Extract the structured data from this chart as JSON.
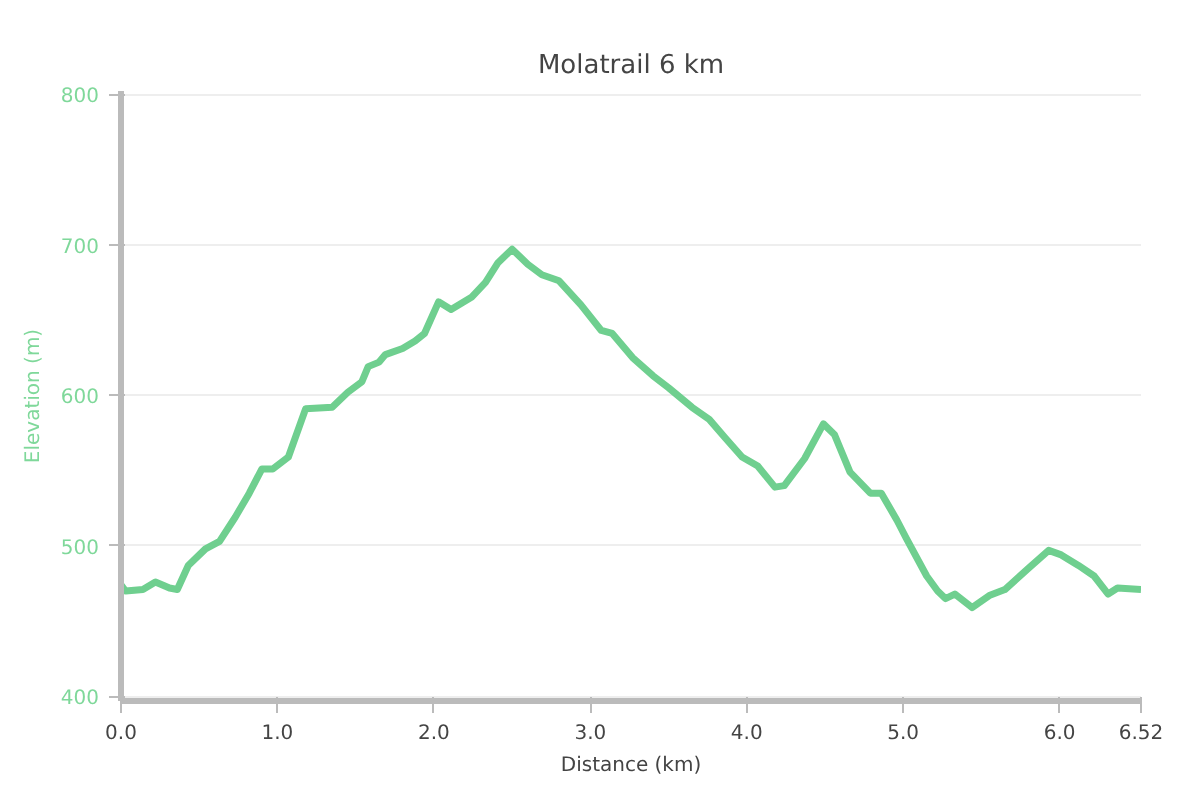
{
  "chart_data": {
    "type": "line",
    "title": "Molatrail 6 km",
    "xlabel": "Distance (km)",
    "ylabel": "Elevation (m)",
    "x": [
      0,
      0.03,
      0.14,
      0.22,
      0.31,
      0.36,
      0.43,
      0.54,
      0.63,
      0.73,
      0.82,
      0.9,
      0.97,
      1.07,
      1.18,
      1.35,
      1.45,
      1.54,
      1.58,
      1.65,
      1.69,
      1.8,
      1.88,
      1.94,
      2.03,
      2.11,
      2.24,
      2.33,
      2.41,
      2.5,
      2.6,
      2.69,
      2.8,
      2.94,
      3.07,
      3.14,
      3.27,
      3.4,
      3.5,
      3.65,
      3.76,
      3.86,
      3.97,
      4.07,
      4.18,
      4.24,
      4.37,
      4.49,
      4.56,
      4.66,
      4.79,
      4.86,
      4.96,
      5.02,
      5.15,
      5.22,
      5.27,
      5.33,
      5.44,
      5.55,
      5.65,
      5.8,
      5.93,
      6.01,
      6.12,
      6.22,
      6.31,
      6.37,
      6.52
    ],
    "series": [
      {
        "color": "#6fcf8f",
        "values": [
          474,
          470,
          471,
          476,
          472,
          471,
          487,
          498,
          503,
          519,
          535,
          551,
          551,
          559,
          591,
          592,
          602,
          609,
          619,
          622,
          627,
          631,
          636,
          641,
          662,
          657,
          665,
          675,
          688,
          697,
          687,
          680,
          676,
          660,
          643,
          641,
          625,
          613,
          605,
          592,
          584,
          572,
          559,
          553,
          539,
          540,
          558,
          581,
          574,
          549,
          535,
          535,
          517,
          505,
          480,
          470,
          465,
          468,
          459,
          467,
          471,
          485,
          497,
          494,
          487,
          480,
          468,
          472,
          471
        ]
      }
    ],
    "xlim": [
      0,
      6.52
    ],
    "xticks": [
      {
        "value": 0,
        "label": "0.0"
      },
      {
        "value": 1,
        "label": "1.0"
      },
      {
        "value": 2,
        "label": "2.0"
      },
      {
        "value": 3,
        "label": "3.0"
      },
      {
        "value": 4,
        "label": "4.0"
      },
      {
        "value": 5,
        "label": "5.0"
      },
      {
        "value": 6,
        "label": "6.0"
      },
      6.52
    ],
    "ylim": [
      397,
      802
    ],
    "yticks": [
      400,
      500,
      600,
      700,
      800
    ],
    "grid": "y",
    "marker": "none",
    "line_style": "solid"
  }
}
